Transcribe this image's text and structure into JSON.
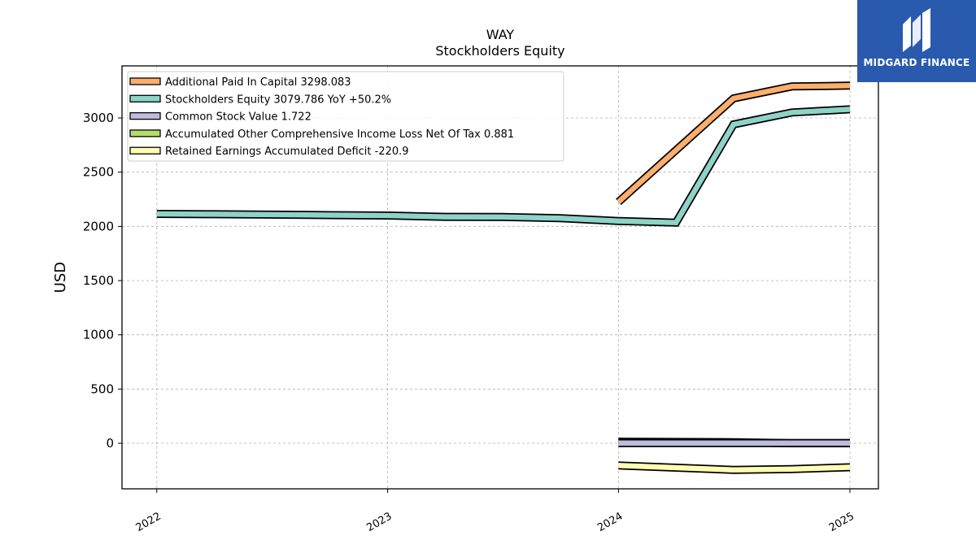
{
  "title": "WAY",
  "subtitle": "Stockholders  Equity",
  "brand": {
    "name": "MIDGARD FINANCE",
    "color": "#2a5aad"
  },
  "chart_data": {
    "type": "line",
    "ylabel": "USD",
    "xlabel": "",
    "ylim": [
      -420,
      3480
    ],
    "xlim": [
      "2021-11-07",
      "2025-02-15"
    ],
    "yticks": [
      0,
      500,
      1000,
      1500,
      2000,
      2500,
      3000
    ],
    "xticks": [
      "2022-01-01",
      "2023-01-01",
      "2024-01-01",
      "2025-01-01"
    ],
    "xtick_labels": [
      "2022",
      "2023",
      "2024",
      "2025"
    ],
    "grid": true,
    "legend_position": "top-left",
    "series": [
      {
        "name": "Additional Paid In Capital",
        "legend_label": "Additional Paid In Capital  3298.083",
        "color": "#fdae6b",
        "x": [
          "2024-01-01",
          "2024-07-01",
          "2024-10-01",
          "2025-01-01"
        ],
        "y": [
          2225,
          3180,
          3290,
          3298.083
        ]
      },
      {
        "name": "Stockholders Equity",
        "legend_label": "Stockholders Equity  3079.786 YoY +50.2%",
        "color": "#8dd3c7",
        "x": [
          "2022-01-01",
          "2022-04-01",
          "2022-07-01",
          "2022-10-01",
          "2023-01-01",
          "2023-04-01",
          "2023-07-01",
          "2023-10-01",
          "2024-01-01",
          "2024-04-01",
          "2024-07-01",
          "2024-10-01",
          "2025-01-01"
        ],
        "y": [
          2115,
          2112,
          2108,
          2104,
          2100,
          2088,
          2087,
          2075,
          2050,
          2035,
          2940,
          3050,
          3079.786
        ]
      },
      {
        "name": "Common Stock Value",
        "legend_label": "Common Stock Value  1.722",
        "color": "#bcbddc",
        "x": [
          "2024-01-01",
          "2024-07-01",
          "2024-10-01",
          "2025-01-01"
        ],
        "y": [
          1.7,
          1.7,
          1.7,
          1.722
        ]
      },
      {
        "name": "Accumulated Other Comprehensive Income Loss Net Of Tax",
        "legend_label": "Accumulated Other Comprehensive Income Loss Net Of Tax  0.881",
        "color": "#b3de69",
        "x": [
          "2024-01-01",
          "2024-07-01",
          "2024-10-01",
          "2025-01-01"
        ],
        "y": [
          14,
          10,
          1,
          0.881
        ]
      },
      {
        "name": "Retained Earnings Accumulated Deficit",
        "legend_label": "Retained Earnings Accumulated Deficit  -220.9",
        "color": "#ffffb3",
        "x": [
          "2024-01-01",
          "2024-07-01",
          "2024-10-01",
          "2025-01-01"
        ],
        "y": [
          -205,
          -245,
          -238,
          -220.9
        ]
      }
    ]
  }
}
